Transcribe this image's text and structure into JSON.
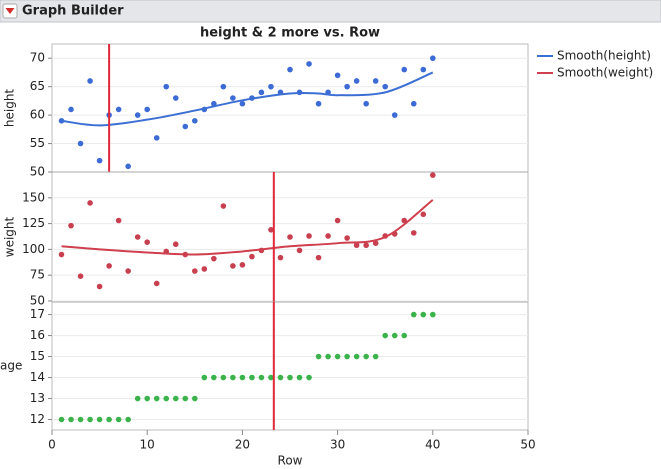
{
  "header": {
    "title": "Graph Builder"
  },
  "chart_data": {
    "type": "scatter",
    "title": "height & 2 more vs. Row",
    "x_label": "Row",
    "x": [
      1,
      2,
      3,
      4,
      5,
      6,
      7,
      8,
      9,
      10,
      11,
      12,
      13,
      14,
      15,
      16,
      17,
      18,
      19,
      20,
      21,
      22,
      23,
      24,
      25,
      26,
      27,
      28,
      29,
      30,
      31,
      32,
      33,
      34,
      35,
      36,
      37,
      38,
      39,
      40
    ],
    "xlim": [
      0,
      50
    ],
    "xticks": [
      0,
      10,
      20,
      30,
      40,
      50
    ],
    "grid": true,
    "legend": "right",
    "panels": [
      {
        "y_label": "height",
        "ylim": [
          50,
          72.5
        ],
        "yticks": [
          50,
          55,
          60,
          65,
          70
        ],
        "vline": 6,
        "series": [
          {
            "name": "height",
            "color": "#3d6bd6",
            "values": [
              59,
              61,
              55,
              66,
              52,
              60,
              61,
              51,
              60,
              61,
              56,
              65,
              63,
              58,
              59,
              61,
              62,
              65,
              63,
              62,
              63,
              64,
              65,
              64,
              68,
              64,
              69,
              62,
              64,
              67,
              65,
              66,
              62,
              66,
              65,
              60,
              68,
              62,
              68,
              70
            ]
          }
        ],
        "smooth": {
          "name": "Smooth(height)",
          "color": "#3c6fd4",
          "x": [
            1,
            5,
            10,
            15,
            20,
            25,
            28,
            30,
            35,
            40
          ],
          "values": [
            59,
            58.2,
            59.2,
            60.8,
            62.6,
            63.8,
            63.8,
            63.5,
            64,
            67.5
          ]
        }
      },
      {
        "y_label": "weight",
        "ylim": [
          49,
          175
        ],
        "yticks": [
          50,
          75,
          100,
          125,
          150
        ],
        "vline": 23.3,
        "series": [
          {
            "name": "weight",
            "color": "#c8404f",
            "values": [
              95,
              123,
              74,
              145,
              64,
              84,
              128,
              79,
              112,
              107,
              67,
              98,
              105,
              95,
              79,
              81,
              91,
              142,
              84,
              85,
              93,
              99,
              119,
              92,
              112,
              99,
              113,
              92,
              113,
              128,
              111,
              104,
              104,
              106,
              113,
              115,
              128,
              116,
              134,
              172
            ]
          }
        ],
        "smooth": {
          "name": "Smooth(weight)",
          "color": "#cf3f4d",
          "x": [
            1,
            5,
            10,
            15,
            20,
            25,
            30,
            35,
            40
          ],
          "values": [
            103,
            100,
            97,
            95,
            98,
            103,
            106,
            112,
            148
          ]
        }
      },
      {
        "y_label": "age",
        "ylim": [
          11.5,
          17.6
        ],
        "yticks": [
          12,
          13,
          14,
          15,
          16,
          17
        ],
        "vline": 23.3,
        "series": [
          {
            "name": "age",
            "color": "#3bb34a",
            "values": [
              12,
              12,
              12,
              12,
              12,
              12,
              12,
              12,
              13,
              13,
              13,
              13,
              13,
              13,
              13,
              14,
              14,
              14,
              14,
              14,
              14,
              14,
              14,
              14,
              14,
              14,
              14,
              15,
              15,
              15,
              15,
              15,
              15,
              15,
              16,
              16,
              16,
              17,
              17,
              17
            ]
          }
        ]
      }
    ]
  }
}
